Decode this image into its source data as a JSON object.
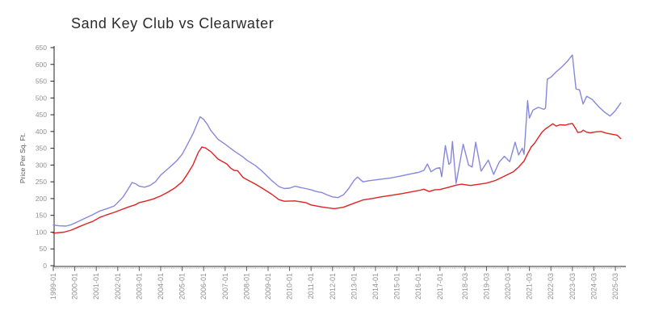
{
  "title": "Sand Key Club vs Clearwater",
  "chart_data": {
    "type": "line",
    "title": "Sand Key Club vs Clearwater",
    "xlabel": "",
    "ylabel": "Price Per Sq. Ft.",
    "ylim": [
      0,
      650
    ],
    "y_ticks": [
      0,
      50,
      100,
      150,
      200,
      250,
      300,
      350,
      400,
      450,
      500,
      550,
      600,
      650
    ],
    "x_tick_labels": [
      "1999-01",
      "2000-01",
      "2001-01",
      "2002-01",
      "2003-01",
      "2004-01",
      "2005-01",
      "2006-01",
      "2007-01",
      "2008-01",
      "2009-01",
      "2010-01",
      "2011-01",
      "2012-01",
      "2013-01",
      "2014-01",
      "2015-01",
      "2016-01",
      "2017-01",
      "2018-03",
      "2019-03",
      "2020-03",
      "2021-03",
      "2022-03",
      "2023-03",
      "2024-03",
      "2025-03"
    ],
    "x_range": [
      "1999-01",
      "2025-06"
    ],
    "grid": false,
    "legend_position": "none",
    "axis_color": "#222222",
    "tick_label_color": "#909090",
    "minor_tick_color": "#b5b5b5",
    "series": [
      {
        "name": "Clearwater",
        "color": "#8787dc",
        "points": [
          [
            "1999-01",
            121
          ],
          [
            "1999-04",
            119
          ],
          [
            "1999-08",
            118
          ],
          [
            "1999-11",
            122
          ],
          [
            "2000-03",
            132
          ],
          [
            "2000-07",
            142
          ],
          [
            "2000-11",
            152
          ],
          [
            "2001-03",
            163
          ],
          [
            "2001-07",
            170
          ],
          [
            "2001-11",
            178
          ],
          [
            "2002-01",
            188
          ],
          [
            "2002-04",
            205
          ],
          [
            "2002-07",
            230
          ],
          [
            "2002-09",
            248
          ],
          [
            "2002-11",
            244
          ],
          [
            "2003-01",
            237
          ],
          [
            "2003-04",
            234
          ],
          [
            "2003-07",
            239
          ],
          [
            "2003-10",
            250
          ],
          [
            "2004-01",
            270
          ],
          [
            "2004-04",
            284
          ],
          [
            "2004-07",
            298
          ],
          [
            "2004-10",
            313
          ],
          [
            "2005-01",
            332
          ],
          [
            "2005-04",
            362
          ],
          [
            "2005-07",
            393
          ],
          [
            "2005-09",
            418
          ],
          [
            "2005-11",
            444
          ],
          [
            "2006-01",
            436
          ],
          [
            "2006-03",
            422
          ],
          [
            "2006-05",
            403
          ],
          [
            "2006-09",
            377
          ],
          [
            "2007-01",
            362
          ],
          [
            "2007-06",
            342
          ],
          [
            "2007-11",
            324
          ],
          [
            "2008-01",
            315
          ],
          [
            "2008-06",
            298
          ],
          [
            "2008-10",
            280
          ],
          [
            "2009-03",
            254
          ],
          [
            "2009-07",
            236
          ],
          [
            "2009-10",
            230
          ],
          [
            "2010-01",
            231
          ],
          [
            "2010-04",
            237
          ],
          [
            "2010-07",
            233
          ],
          [
            "2010-10",
            230
          ],
          [
            "2011-01",
            226
          ],
          [
            "2011-04",
            221
          ],
          [
            "2011-07",
            218
          ],
          [
            "2011-10",
            211
          ],
          [
            "2012-01",
            205
          ],
          [
            "2012-04",
            203
          ],
          [
            "2012-07",
            211
          ],
          [
            "2012-10",
            230
          ],
          [
            "2013-01",
            254
          ],
          [
            "2013-03",
            264
          ],
          [
            "2013-06",
            250
          ],
          [
            "2013-09",
            253
          ],
          [
            "2014-03",
            257
          ],
          [
            "2014-09",
            261
          ],
          [
            "2015-03",
            267
          ],
          [
            "2015-09",
            274
          ],
          [
            "2016-01",
            278
          ],
          [
            "2016-04",
            284
          ],
          [
            "2016-06",
            303
          ],
          [
            "2016-08",
            280
          ],
          [
            "2016-11",
            290
          ],
          [
            "2017-01",
            292
          ],
          [
            "2017-02",
            265
          ],
          [
            "2017-04",
            358
          ],
          [
            "2017-06",
            302
          ],
          [
            "2017-07",
            308
          ],
          [
            "2017-08",
            370
          ],
          [
            "2017-10",
            245
          ],
          [
            "2018-02",
            362
          ],
          [
            "2018-05",
            300
          ],
          [
            "2018-07",
            294
          ],
          [
            "2018-09",
            368
          ],
          [
            "2018-12",
            282
          ],
          [
            "2019-04",
            315
          ],
          [
            "2019-07",
            272
          ],
          [
            "2019-10",
            308
          ],
          [
            "2020-01",
            326
          ],
          [
            "2020-04",
            310
          ],
          [
            "2020-07",
            368
          ],
          [
            "2020-09",
            330
          ],
          [
            "2020-11",
            350
          ],
          [
            "2020-12",
            332
          ],
          [
            "2021-02",
            492
          ],
          [
            "2021-03",
            440
          ],
          [
            "2021-05",
            464
          ],
          [
            "2021-08",
            472
          ],
          [
            "2021-11",
            466
          ],
          [
            "2021-12",
            470
          ],
          [
            "2022-01",
            556
          ],
          [
            "2022-03",
            562
          ],
          [
            "2022-06",
            578
          ],
          [
            "2022-09",
            592
          ],
          [
            "2022-12",
            608
          ],
          [
            "2023-03",
            628
          ],
          [
            "2023-05",
            527
          ],
          [
            "2023-07",
            524
          ],
          [
            "2023-09",
            482
          ],
          [
            "2023-11",
            505
          ],
          [
            "2024-02",
            496
          ],
          [
            "2024-06",
            472
          ],
          [
            "2024-09",
            458
          ],
          [
            "2024-12",
            446
          ],
          [
            "2025-03",
            462
          ],
          [
            "2025-06",
            485
          ]
        ]
      },
      {
        "name": "Sand Key Club",
        "color": "#e02222",
        "points": [
          [
            "1999-01",
            97
          ],
          [
            "1999-07",
            100
          ],
          [
            "1999-11",
            106
          ],
          [
            "2000-03",
            115
          ],
          [
            "2000-07",
            124
          ],
          [
            "2000-11",
            132
          ],
          [
            "2001-03",
            144
          ],
          [
            "2001-07",
            152
          ],
          [
            "2001-11",
            159
          ],
          [
            "2002-03",
            167
          ],
          [
            "2002-07",
            175
          ],
          [
            "2002-11",
            182
          ],
          [
            "2003-01",
            188
          ],
          [
            "2003-05",
            193
          ],
          [
            "2003-09",
            199
          ],
          [
            "2004-01",
            208
          ],
          [
            "2004-05",
            219
          ],
          [
            "2004-09",
            232
          ],
          [
            "2005-01",
            250
          ],
          [
            "2005-04",
            274
          ],
          [
            "2005-07",
            300
          ],
          [
            "2005-10",
            338
          ],
          [
            "2005-12",
            354
          ],
          [
            "2006-02",
            351
          ],
          [
            "2006-05",
            340
          ],
          [
            "2006-09",
            318
          ],
          [
            "2007-02",
            303
          ],
          [
            "2007-04",
            291
          ],
          [
            "2007-06",
            284
          ],
          [
            "2007-08",
            283
          ],
          [
            "2007-11",
            263
          ],
          [
            "2008-01",
            257
          ],
          [
            "2008-06",
            243
          ],
          [
            "2008-10",
            230
          ],
          [
            "2009-03",
            213
          ],
          [
            "2009-07",
            197
          ],
          [
            "2009-10",
            192
          ],
          [
            "2010-04",
            193
          ],
          [
            "2010-10",
            188
          ],
          [
            "2011-01",
            181
          ],
          [
            "2011-07",
            175
          ],
          [
            "2011-11",
            172
          ],
          [
            "2012-02",
            170
          ],
          [
            "2012-07",
            174
          ],
          [
            "2012-10",
            180
          ],
          [
            "2013-01",
            186
          ],
          [
            "2013-06",
            196
          ],
          [
            "2013-11",
            200
          ],
          [
            "2014-04",
            205
          ],
          [
            "2014-10",
            210
          ],
          [
            "2015-04",
            215
          ],
          [
            "2015-10",
            221
          ],
          [
            "2016-02",
            225
          ],
          [
            "2016-04",
            228
          ],
          [
            "2016-07",
            221
          ],
          [
            "2016-10",
            226
          ],
          [
            "2017-01",
            227
          ],
          [
            "2017-06",
            234
          ],
          [
            "2017-10",
            240
          ],
          [
            "2018-01",
            243
          ],
          [
            "2018-06",
            239
          ],
          [
            "2018-11",
            243
          ],
          [
            "2019-03",
            246
          ],
          [
            "2019-08",
            254
          ],
          [
            "2019-12",
            264
          ],
          [
            "2020-03",
            272
          ],
          [
            "2020-06",
            280
          ],
          [
            "2020-09",
            294
          ],
          [
            "2020-12",
            312
          ],
          [
            "2021-02",
            334
          ],
          [
            "2021-04",
            354
          ],
          [
            "2021-06",
            366
          ],
          [
            "2021-08",
            382
          ],
          [
            "2021-10",
            398
          ],
          [
            "2021-12",
            408
          ],
          [
            "2022-02",
            415
          ],
          [
            "2022-04",
            423
          ],
          [
            "2022-06",
            416
          ],
          [
            "2022-08",
            420
          ],
          [
            "2022-11",
            419
          ],
          [
            "2023-01",
            422
          ],
          [
            "2023-03",
            424
          ],
          [
            "2023-05",
            407
          ],
          [
            "2023-06",
            397
          ],
          [
            "2023-08",
            399
          ],
          [
            "2023-09",
            404
          ],
          [
            "2023-11",
            398
          ],
          [
            "2024-01",
            396
          ],
          [
            "2024-04",
            399
          ],
          [
            "2024-07",
            400
          ],
          [
            "2024-10",
            395
          ],
          [
            "2025-01",
            392
          ],
          [
            "2025-04",
            389
          ],
          [
            "2025-06",
            379
          ]
        ]
      }
    ]
  }
}
